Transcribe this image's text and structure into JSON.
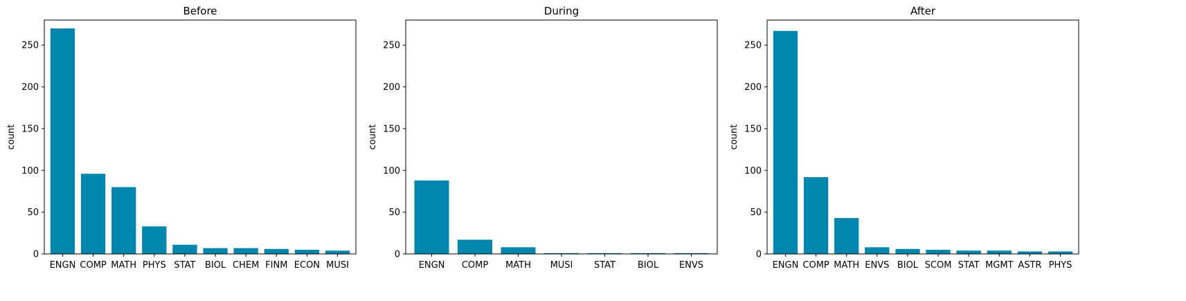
{
  "chart_data": [
    {
      "type": "bar",
      "title": "Before",
      "xlabel": "",
      "ylabel": "count",
      "ylim": [
        0,
        280
      ],
      "yticks": [
        0,
        50,
        100,
        150,
        200,
        250
      ],
      "bar_color": "#0086ad",
      "categories": [
        "ENGN",
        "COMP",
        "MATH",
        "PHYS",
        "STAT",
        "BIOL",
        "CHEM",
        "FINM",
        "ECON",
        "MUSI"
      ],
      "values": [
        270,
        96,
        80,
        33,
        11,
        7,
        7,
        6,
        5,
        4
      ]
    },
    {
      "type": "bar",
      "title": "During",
      "xlabel": "",
      "ylabel": "count",
      "ylim": [
        0,
        280
      ],
      "yticks": [
        0,
        50,
        100,
        150,
        200,
        250
      ],
      "bar_color": "#0086ad",
      "categories": [
        "ENGN",
        "COMP",
        "MATH",
        "MUSI",
        "STAT",
        "BIOL",
        "ENVS"
      ],
      "values": [
        88,
        17,
        8,
        1,
        1,
        1,
        1
      ]
    },
    {
      "type": "bar",
      "title": "After",
      "xlabel": "",
      "ylabel": "count",
      "ylim": [
        0,
        280
      ],
      "yticks": [
        0,
        50,
        100,
        150,
        200,
        250
      ],
      "bar_color": "#0086ad",
      "categories": [
        "ENGN",
        "COMP",
        "MATH",
        "ENVS",
        "BIOL",
        "SCOM",
        "STAT",
        "MGMT",
        "ASTR",
        "PHYS"
      ],
      "values": [
        267,
        92,
        43,
        8,
        6,
        5,
        4,
        4,
        3,
        3
      ]
    }
  ]
}
